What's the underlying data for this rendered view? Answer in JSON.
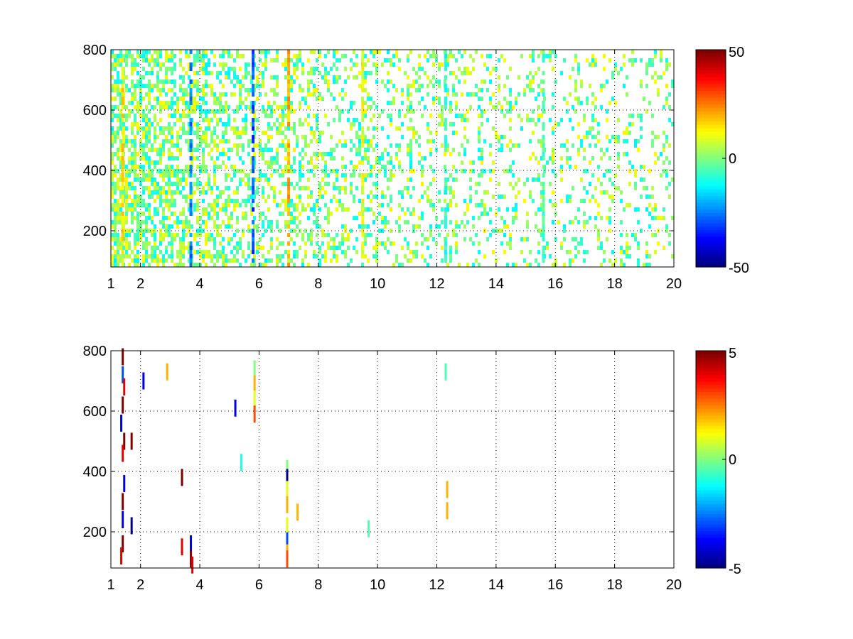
{
  "chart_data": [
    {
      "type": "heatmap",
      "title": "",
      "xlabel": "",
      "ylabel": "",
      "xlim": [
        1,
        20
      ],
      "ylim": [
        80,
        800
      ],
      "x_ticks": [
        "1",
        "2",
        "4",
        "6",
        "8",
        "10",
        "12",
        "14",
        "16",
        "18",
        "20"
      ],
      "y_ticks": [
        "200",
        "400",
        "600",
        "800"
      ],
      "grid": true,
      "colormap": "jet",
      "clim": [
        -50,
        50
      ],
      "colorbar_ticks": [
        "-50",
        "0",
        "50"
      ],
      "colorbar_location": "right",
      "dense_columns": [
        {
          "x": 1.4,
          "value": 15
        },
        {
          "x": 3.7,
          "value": -25
        },
        {
          "x": 5.8,
          "value": -30
        },
        {
          "x": 7.0,
          "value": 20
        },
        {
          "x": 9.5,
          "value": 10
        },
        {
          "x": 12.3,
          "value": -8
        },
        {
          "x": 15.6,
          "value": -5
        }
      ]
    },
    {
      "type": "heatmap",
      "title": "",
      "xlabel": "",
      "ylabel": "",
      "xlim": [
        1,
        20
      ],
      "ylim": [
        80,
        800
      ],
      "x_ticks": [
        "1",
        "2",
        "4",
        "6",
        "8",
        "10",
        "12",
        "14",
        "16",
        "18",
        "20"
      ],
      "y_ticks": [
        "200",
        "400",
        "600",
        "800"
      ],
      "grid": true,
      "colormap": "jet",
      "clim": [
        -5,
        5
      ],
      "colorbar_ticks": [
        "-5",
        "0",
        "5"
      ],
      "colorbar_location": "right",
      "points": [
        {
          "x": 1.4,
          "y": 780,
          "value": 5
        },
        {
          "x": 1.4,
          "y": 720,
          "value": -3
        },
        {
          "x": 1.45,
          "y": 680,
          "value": 4
        },
        {
          "x": 1.4,
          "y": 620,
          "value": 5
        },
        {
          "x": 1.35,
          "y": 560,
          "value": -4
        },
        {
          "x": 1.45,
          "y": 500,
          "value": 5
        },
        {
          "x": 1.4,
          "y": 460,
          "value": 4
        },
        {
          "x": 1.45,
          "y": 360,
          "value": -4
        },
        {
          "x": 1.4,
          "y": 300,
          "value": 5
        },
        {
          "x": 1.4,
          "y": 240,
          "value": -4
        },
        {
          "x": 1.4,
          "y": 160,
          "value": 5
        },
        {
          "x": 1.35,
          "y": 120,
          "value": 4
        },
        {
          "x": 1.7,
          "y": 500,
          "value": 5
        },
        {
          "x": 1.7,
          "y": 220,
          "value": -5
        },
        {
          "x": 2.1,
          "y": 700,
          "value": -4
        },
        {
          "x": 2.9,
          "y": 730,
          "value": 2
        },
        {
          "x": 3.4,
          "y": 380,
          "value": 5
        },
        {
          "x": 3.4,
          "y": 150,
          "value": 4
        },
        {
          "x": 3.7,
          "y": 160,
          "value": -4
        },
        {
          "x": 3.7,
          "y": 110,
          "value": 5
        },
        {
          "x": 3.75,
          "y": 90,
          "value": 4
        },
        {
          "x": 5.2,
          "y": 610,
          "value": -4
        },
        {
          "x": 5.4,
          "y": 430,
          "value": -1
        },
        {
          "x": 5.85,
          "y": 740,
          "value": 0
        },
        {
          "x": 5.85,
          "y": 690,
          "value": 2
        },
        {
          "x": 5.85,
          "y": 640,
          "value": 1
        },
        {
          "x": 5.85,
          "y": 590,
          "value": 3
        },
        {
          "x": 6.95,
          "y": 410,
          "value": 0
        },
        {
          "x": 6.95,
          "y": 380,
          "value": -5
        },
        {
          "x": 6.95,
          "y": 340,
          "value": 1
        },
        {
          "x": 6.95,
          "y": 290,
          "value": 2
        },
        {
          "x": 6.95,
          "y": 220,
          "value": 1
        },
        {
          "x": 6.95,
          "y": 170,
          "value": -3
        },
        {
          "x": 6.95,
          "y": 130,
          "value": 2
        },
        {
          "x": 6.95,
          "y": 110,
          "value": 3
        },
        {
          "x": 7.3,
          "y": 265,
          "value": 2
        },
        {
          "x": 9.7,
          "y": 210,
          "value": -0.5
        },
        {
          "x": 12.35,
          "y": 340,
          "value": 2
        },
        {
          "x": 12.35,
          "y": 270,
          "value": 2
        },
        {
          "x": 12.3,
          "y": 730,
          "value": -0.5
        }
      ]
    }
  ]
}
